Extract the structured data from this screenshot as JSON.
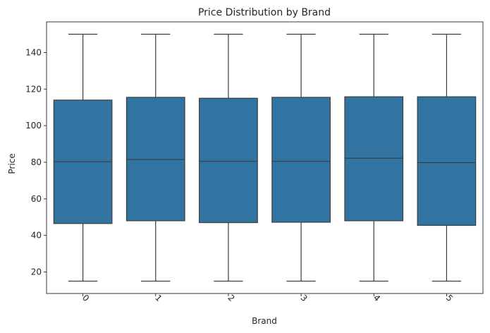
{
  "chart_data": {
    "type": "box",
    "title": "Price Distribution by Brand",
    "xlabel": "Brand",
    "ylabel": "Price",
    "categories": [
      "0",
      "1",
      "2",
      "3",
      "4",
      "5"
    ],
    "boxes": [
      {
        "category": "0",
        "whisker_low": 15,
        "q1": 46.5,
        "median": 80.3,
        "q3": 114,
        "whisker_high": 150
      },
      {
        "category": "1",
        "whisker_low": 15,
        "q1": 48,
        "median": 81.5,
        "q3": 115.5,
        "whisker_high": 150
      },
      {
        "category": "2",
        "whisker_low": 15,
        "q1": 47,
        "median": 80.5,
        "q3": 115,
        "whisker_high": 150
      },
      {
        "category": "3",
        "whisker_low": 15,
        "q1": 47.2,
        "median": 80.5,
        "q3": 115.5,
        "whisker_high": 150
      },
      {
        "category": "4",
        "whisker_low": 15,
        "q1": 48,
        "median": 82.2,
        "q3": 115.8,
        "whisker_high": 150
      },
      {
        "category": "5",
        "whisker_low": 15,
        "q1": 45.5,
        "median": 79.8,
        "q3": 115.8,
        "whisker_high": 150
      }
    ],
    "yticks": [
      20,
      40,
      60,
      80,
      100,
      120,
      140
    ],
    "ylim": [
      8.25,
      156.75
    ],
    "box_color": "#3274a1",
    "line_color": "#3d3d3d",
    "grid": false,
    "x_tick_rotation": 45
  }
}
